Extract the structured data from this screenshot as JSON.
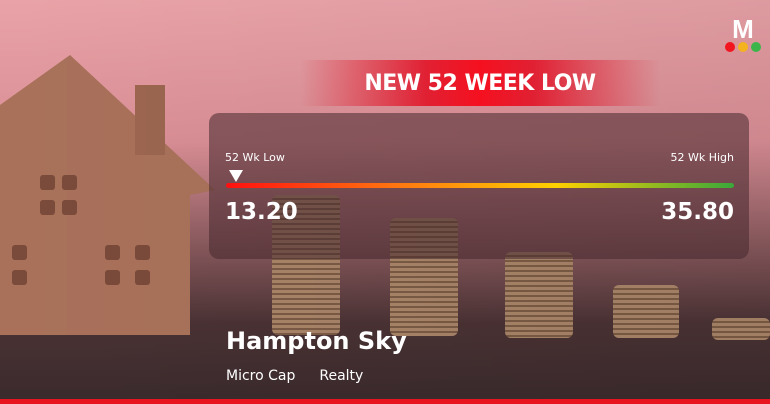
{
  "banner": {
    "title": "NEW 52 WEEK LOW"
  },
  "logo": {
    "letter": "M",
    "dot_colors": [
      "#f2141e",
      "#f5b21f",
      "#3bb54a"
    ]
  },
  "range": {
    "low_label": "52 Wk Low",
    "high_label": "52 Wk High",
    "low_value": "13.20",
    "high_value": "35.80",
    "current_position_percent": 2
  },
  "stock": {
    "name": "Hampton Sky",
    "market_cap": "Micro Cap",
    "sector": "Realty"
  },
  "colors": {
    "accent": "#e8141e"
  }
}
